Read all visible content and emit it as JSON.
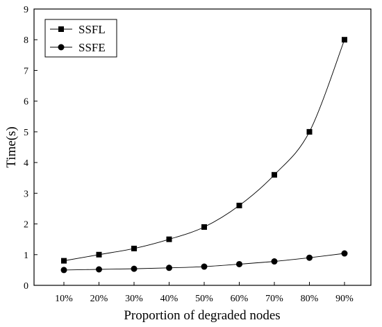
{
  "chart_data": {
    "type": "line",
    "title": "",
    "xlabel": "Proportion of degraded nodes",
    "ylabel": "Time(s)",
    "categories": [
      "10%",
      "20%",
      "30%",
      "40%",
      "50%",
      "60%",
      "70%",
      "80%",
      "90%"
    ],
    "ylim": [
      0,
      9
    ],
    "yticks": [
      "0",
      "1",
      "2",
      "3",
      "4",
      "5",
      "6",
      "7",
      "8",
      "9"
    ],
    "grid": false,
    "legend_position": "top-left",
    "series": [
      {
        "name": "SSFL",
        "marker": "square",
        "color": "#000000",
        "values": [
          0.8,
          1.0,
          1.2,
          1.5,
          1.9,
          2.6,
          3.6,
          5.0,
          8.0
        ]
      },
      {
        "name": "SSFE",
        "marker": "circle",
        "color": "#000000",
        "values": [
          0.5,
          0.52,
          0.54,
          0.57,
          0.61,
          0.69,
          0.78,
          0.9,
          1.04
        ]
      }
    ]
  }
}
